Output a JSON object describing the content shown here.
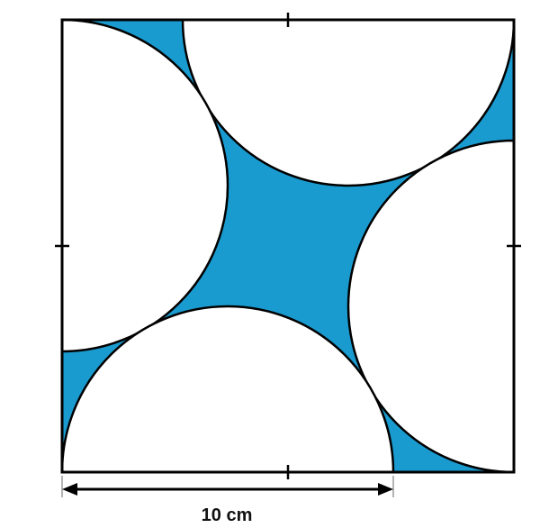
{
  "diagram": {
    "dimension_label": "10 cm",
    "colors": {
      "shaded_region": "#1A9BD0",
      "outline": "#000000",
      "semicircles": "#ffffff",
      "background": "#ffffff"
    }
  }
}
